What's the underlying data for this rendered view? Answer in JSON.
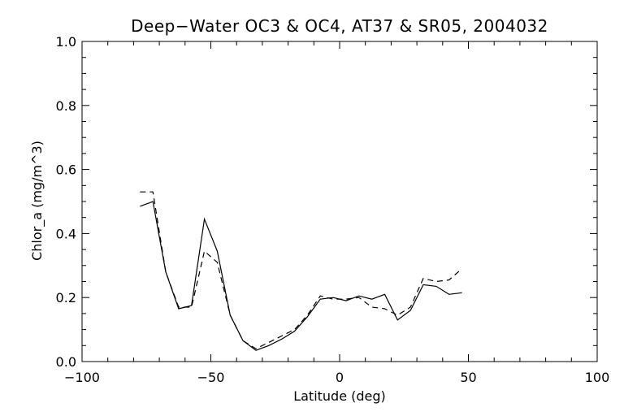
{
  "chart_data": {
    "type": "line",
    "title": "Deep−Water OC3 & OC4, AT37 & SR05, 2004032",
    "xlabel": "Latitude (deg)",
    "ylabel": "Chlor_a (mg/m^3)",
    "xlim": [
      -100,
      100
    ],
    "ylim": [
      0.0,
      1.0
    ],
    "x_ticks": [
      -100,
      -50,
      0,
      50,
      100
    ],
    "x_tick_labels": [
      "−100",
      "−50",
      "0",
      "50",
      "100"
    ],
    "y_ticks": [
      0.0,
      0.2,
      0.4,
      0.6,
      0.8,
      1.0
    ],
    "y_tick_labels": [
      "0.0",
      "0.2",
      "0.4",
      "0.6",
      "0.8",
      "1.0"
    ],
    "grid": false,
    "legend": "none",
    "series": [
      {
        "style": "solid",
        "color": "#000000",
        "x": [
          -77.5,
          -72.5,
          -67.5,
          -62.5,
          -57.5,
          -52.5,
          -47.5,
          -42.5,
          -37.5,
          -32.5,
          -27.5,
          -22.5,
          -17.5,
          -12.5,
          -7.5,
          -2.5,
          2.5,
          7.5,
          12.5,
          17.5,
          22.5,
          27.5,
          32.5,
          37.5,
          42.5,
          47.5
        ],
        "y": [
          0.485,
          0.5,
          0.28,
          0.165,
          0.175,
          0.445,
          0.345,
          0.145,
          0.065,
          0.035,
          0.05,
          0.07,
          0.095,
          0.14,
          0.195,
          0.2,
          0.19,
          0.205,
          0.195,
          0.21,
          0.13,
          0.16,
          0.24,
          0.235,
          0.21,
          0.215
        ]
      },
      {
        "style": "dashed",
        "color": "#000000",
        "x": [
          -77.5,
          -72.5,
          -67.5,
          -62.5,
          -57.5,
          -52.5,
          -47.5,
          -42.5,
          -37.5,
          -32.5,
          -27.5,
          -22.5,
          -17.5,
          -12.5,
          -7.5,
          -2.5,
          2.5,
          7.5,
          12.5,
          17.5,
          22.5,
          27.5,
          32.5,
          37.5,
          42.5,
          47.5
        ],
        "y": [
          0.53,
          0.53,
          0.28,
          0.17,
          0.17,
          0.345,
          0.31,
          0.145,
          0.065,
          0.04,
          0.06,
          0.08,
          0.1,
          0.145,
          0.205,
          0.195,
          0.195,
          0.2,
          0.17,
          0.165,
          0.145,
          0.17,
          0.26,
          0.25,
          0.255,
          0.29
        ]
      }
    ]
  }
}
